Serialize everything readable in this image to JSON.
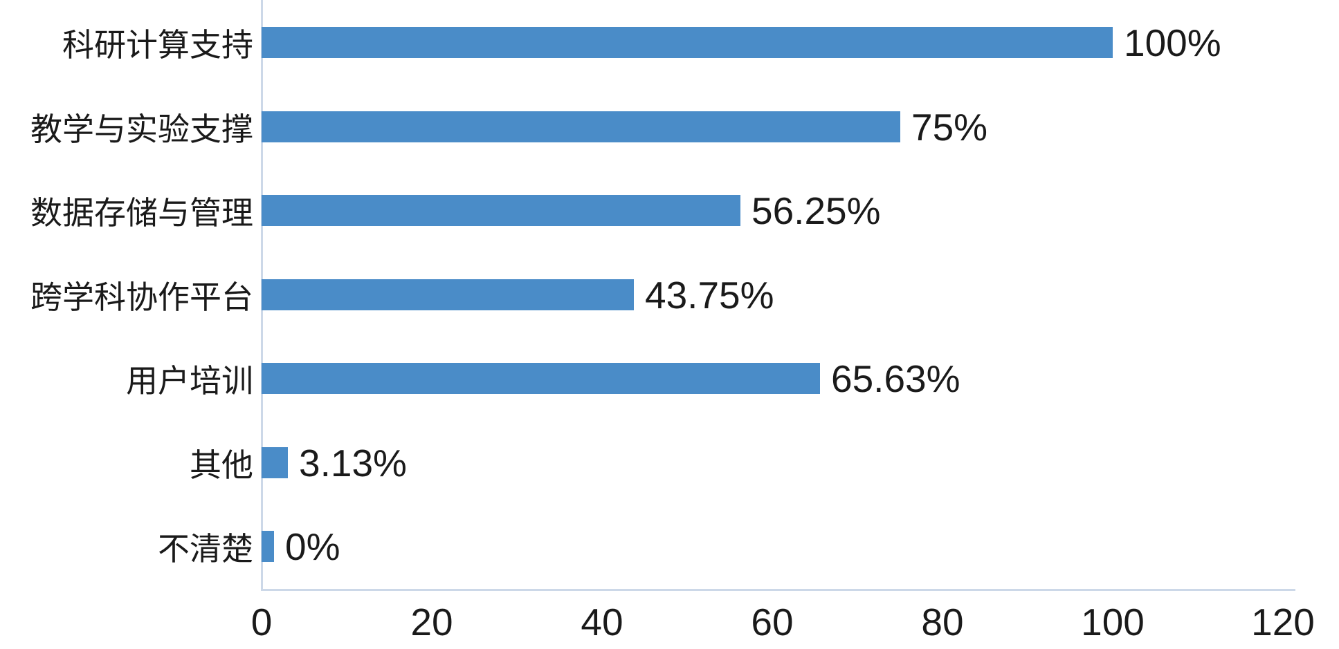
{
  "chart_data": {
    "type": "bar",
    "orientation": "horizontal",
    "title": "",
    "xlabel": "",
    "ylabel": "",
    "categories": [
      "科研计算支持",
      "教学与实验支撑",
      "数据存储与管理",
      "跨学科协作平台",
      "用户培训",
      "其他",
      "不清楚"
    ],
    "values": [
      100,
      75,
      56.25,
      43.75,
      65.63,
      3.13,
      0
    ],
    "value_labels": [
      "100%",
      "75%",
      "56.25%",
      "43.75%",
      "65.63%",
      "3.13%",
      "0%"
    ],
    "x_ticks": [
      0,
      20,
      40,
      60,
      80,
      100,
      120
    ],
    "x_tick_labels": [
      "0",
      "20",
      "40",
      "60",
      "80",
      "100",
      "120"
    ],
    "xlim": [
      0,
      120
    ],
    "grid": false,
    "legend": null,
    "bar_color": "#4a8cc8",
    "axis_line_color": "#ccd8e8",
    "text_color": "#1a1a1a",
    "background_color": "#ffffff"
  }
}
